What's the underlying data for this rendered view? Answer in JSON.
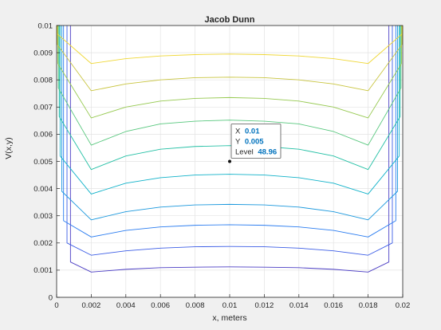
{
  "window": {
    "background": "#f0f0f0"
  },
  "chart_data": {
    "type": "contour",
    "title": "Jacob Dunn",
    "xlabel": "x, meters",
    "ylabel": "V(x,y)",
    "xlim": [
      0,
      0.02
    ],
    "ylim": [
      0,
      0.01
    ],
    "xticks": [
      0,
      0.002,
      0.004,
      0.006,
      0.008,
      0.01,
      0.012,
      0.014,
      0.016,
      0.018,
      0.02
    ],
    "yticks": [
      0,
      0.001,
      0.002,
      0.003,
      0.004,
      0.005,
      0.006,
      0.007,
      0.008,
      0.009,
      0.01
    ],
    "xtick_labels": [
      "0",
      "0.002",
      "0.004",
      "0.006",
      "0.008",
      "0.01",
      "0.012",
      "0.014",
      "0.016",
      "0.018",
      "0.02"
    ],
    "ytick_labels": [
      "0",
      "0.001",
      "0.002",
      "0.003",
      "0.004",
      "0.005",
      "0.006",
      "0.007",
      "0.008",
      "0.009",
      "0.01"
    ],
    "grid": true,
    "colormap": "parula",
    "x_nodes": [
      0.002,
      0.004,
      0.006,
      0.008,
      0.01,
      0.012,
      0.014,
      0.016,
      0.018
    ],
    "levels": [
      {
        "color": "#4b3dc4",
        "edge_x": [
          0.0008,
          0.0192
        ],
        "y": [
          0.0013,
          0.00148,
          0.00152,
          0.00155,
          0.00156,
          0.00155,
          0.00152,
          0.00148,
          0.0013
        ],
        "bottom_y": [
          0.00093,
          0.00103,
          0.00109,
          0.00111,
          0.00112,
          0.00111,
          0.00109,
          0.00103,
          0.00093
        ]
      },
      {
        "color": "#3d5ee6",
        "edge_x": [
          0.0006,
          0.0194
        ],
        "y": [
          0.002,
          0.00228,
          0.00234,
          0.00237,
          0.00238,
          0.00237,
          0.00234,
          0.00228,
          0.002
        ],
        "bottom_y": [
          0.00155,
          0.00171,
          0.00181,
          0.00186,
          0.00187,
          0.00186,
          0.00181,
          0.00171,
          0.00155
        ]
      },
      {
        "color": "#2a7cf0",
        "edge_x": [
          0.0004,
          0.0196
        ],
        "y": [
          0.00282,
          0.00314,
          0.00325,
          0.00331,
          0.00333,
          0.00331,
          0.00325,
          0.00314,
          0.00282
        ],
        "bottom_y": [
          0.00222,
          0.00246,
          0.00259,
          0.00265,
          0.00267,
          0.00265,
          0.00259,
          0.00246,
          0.00222
        ]
      },
      {
        "color": "#1a98dd",
        "edge_x": [
          0.0003,
          0.0197
        ],
        "y": [
          0.0039,
          0.00438,
          0.00457,
          0.00465,
          0.00468,
          0.00465,
          0.00457,
          0.00438,
          0.0039
        ],
        "bottom_y": [
          0.00285,
          0.00315,
          0.00332,
          0.0034,
          0.00342,
          0.0034,
          0.00332,
          0.00315,
          0.00285
        ]
      },
      {
        "color": "#11b2c9",
        "edge_x": [
          0.0002,
          0.0198
        ],
        "y": [
          0.0052,
          0.00583,
          0.0061,
          0.0062,
          0.00624,
          0.0062,
          0.0061,
          0.00583,
          0.0052
        ],
        "bottom_y": [
          0.0038,
          0.0042,
          0.0044,
          0.0045,
          0.00453,
          0.0045,
          0.0044,
          0.0042,
          0.0038
        ]
      },
      {
        "color": "#24c0a5",
        "edge_x": [
          0.00015,
          0.01985
        ],
        "y": [
          0.00665,
          0.0073,
          0.00752,
          0.00762,
          0.00765,
          0.00762,
          0.00752,
          0.0073,
          0.00665
        ],
        "bottom_y": [
          0.0047,
          0.0052,
          0.00545,
          0.00555,
          0.00558,
          0.00555,
          0.00545,
          0.0052,
          0.0047
        ]
      },
      {
        "color": "#57c77d",
        "edge_x": [
          0.0001,
          0.0199
        ],
        "y": [
          0.0077,
          0.0081,
          0.00826,
          0.00832,
          0.00834,
          0.00832,
          0.00826,
          0.0081,
          0.0077
        ],
        "bottom_y": [
          0.0056,
          0.0061,
          0.00638,
          0.00648,
          0.00652,
          0.00648,
          0.00638,
          0.0061,
          0.0056
        ]
      },
      {
        "color": "#96c950",
        "edge_x": [
          7e-05,
          0.01993
        ],
        "y": [
          0.0086,
          0.00875,
          0.00882,
          0.00886,
          0.00888,
          0.00886,
          0.00882,
          0.00875,
          0.0086
        ],
        "bottom_y": [
          0.0066,
          0.007,
          0.00722,
          0.00732,
          0.00735,
          0.00732,
          0.00722,
          0.007,
          0.0066
        ]
      },
      {
        "color": "#c9c540",
        "edge_x": [
          4e-05,
          0.01996
        ],
        "y": [
          0.0093,
          0.00934,
          0.00937,
          0.00939,
          0.0094,
          0.00939,
          0.00937,
          0.00934,
          0.0093
        ],
        "bottom_y": [
          0.0076,
          0.00785,
          0.008,
          0.00808,
          0.0081,
          0.00808,
          0.008,
          0.00785,
          0.0076
        ]
      },
      {
        "color": "#efd735",
        "edge_x": [
          2e-05,
          0.01998
        ],
        "y": [
          0.0097,
          0.00971,
          0.00972,
          0.00972,
          0.00972,
          0.00972,
          0.00972,
          0.00971,
          0.0097
        ],
        "bottom_y": [
          0.0086,
          0.00878,
          0.00888,
          0.00893,
          0.00895,
          0.00893,
          0.00888,
          0.00878,
          0.0086
        ]
      }
    ],
    "datatip": {
      "x_label": "X",
      "x_value": "0.01",
      "y_label": "Y",
      "y_value": "0.005",
      "level_label": "Level",
      "level_value": "48.96",
      "point": [
        0.01,
        0.005
      ],
      "value_color": "#0072bd"
    }
  }
}
